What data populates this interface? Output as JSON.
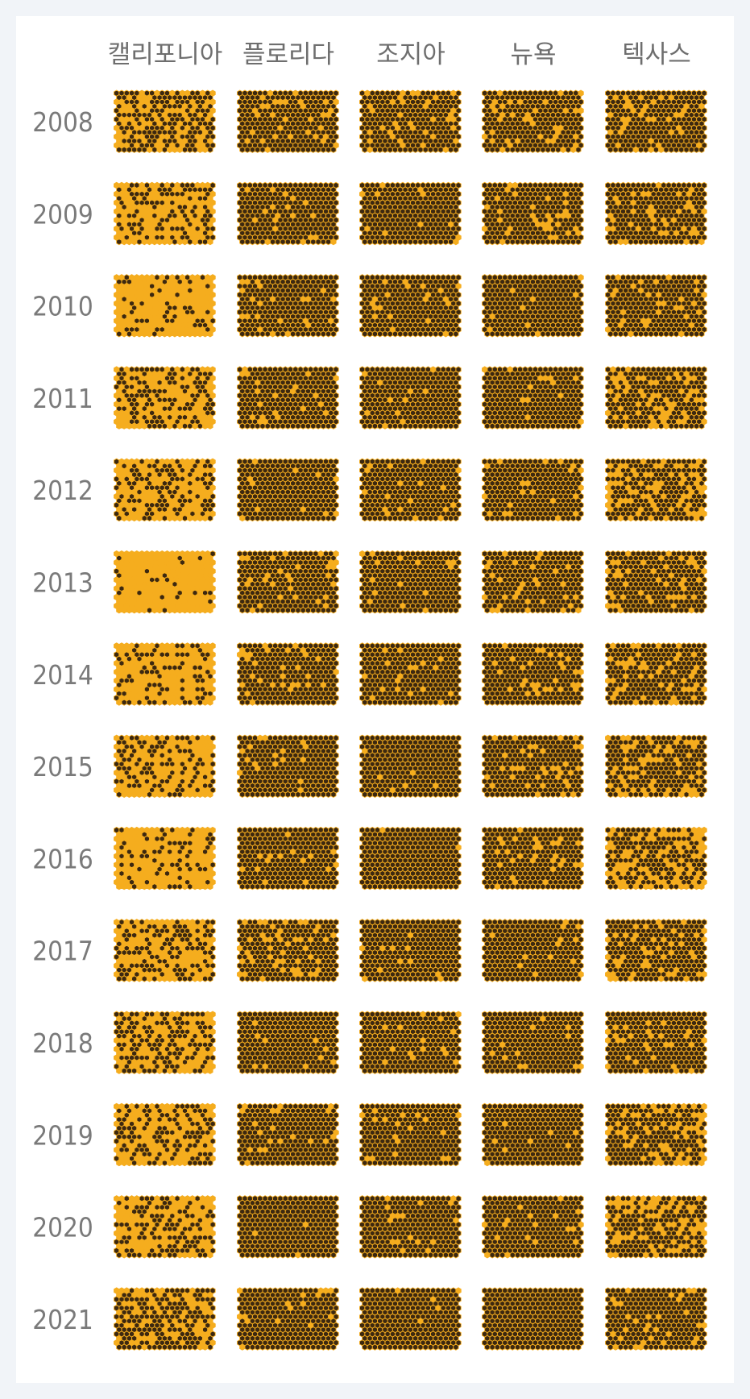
{
  "colors": {
    "background": "#f1f4f8",
    "panel": "#ffffff",
    "filled_cell": "#f5ad1e",
    "empty_cell": "#3c2810",
    "text": "#7a7a7a"
  },
  "chart_data": {
    "type": "heatmap",
    "encoding": "fraction of orange hexagons per state-year block",
    "columns": [
      "캘리포니아",
      "플로리다",
      "조지아",
      "뉴욕",
      "텍사스"
    ],
    "rows": [
      "2008",
      "2009",
      "2010",
      "2011",
      "2012",
      "2013",
      "2014",
      "2015",
      "2016",
      "2017",
      "2018",
      "2019",
      "2020",
      "2021"
    ],
    "values": [
      [
        0.42,
        0.12,
        0.12,
        0.1,
        0.15
      ],
      [
        0.62,
        0.1,
        0.05,
        0.12,
        0.18
      ],
      [
        0.78,
        0.09,
        0.05,
        0.06,
        0.13
      ],
      [
        0.52,
        0.08,
        0.05,
        0.05,
        0.3
      ],
      [
        0.55,
        0.09,
        0.07,
        0.07,
        0.28
      ],
      [
        0.92,
        0.1,
        0.05,
        0.1,
        0.15
      ],
      [
        0.72,
        0.1,
        0.07,
        0.1,
        0.22
      ],
      [
        0.6,
        0.08,
        0.03,
        0.12,
        0.25
      ],
      [
        0.7,
        0.08,
        0.01,
        0.1,
        0.35
      ],
      [
        0.55,
        0.15,
        0.07,
        0.05,
        0.2
      ],
      [
        0.45,
        0.05,
        0.05,
        0.04,
        0.12
      ],
      [
        0.5,
        0.09,
        0.06,
        0.03,
        0.28
      ],
      [
        0.55,
        0.01,
        0.05,
        0.06,
        0.3
      ],
      [
        0.4,
        0.05,
        0.01,
        0.0,
        0.12
      ]
    ]
  }
}
